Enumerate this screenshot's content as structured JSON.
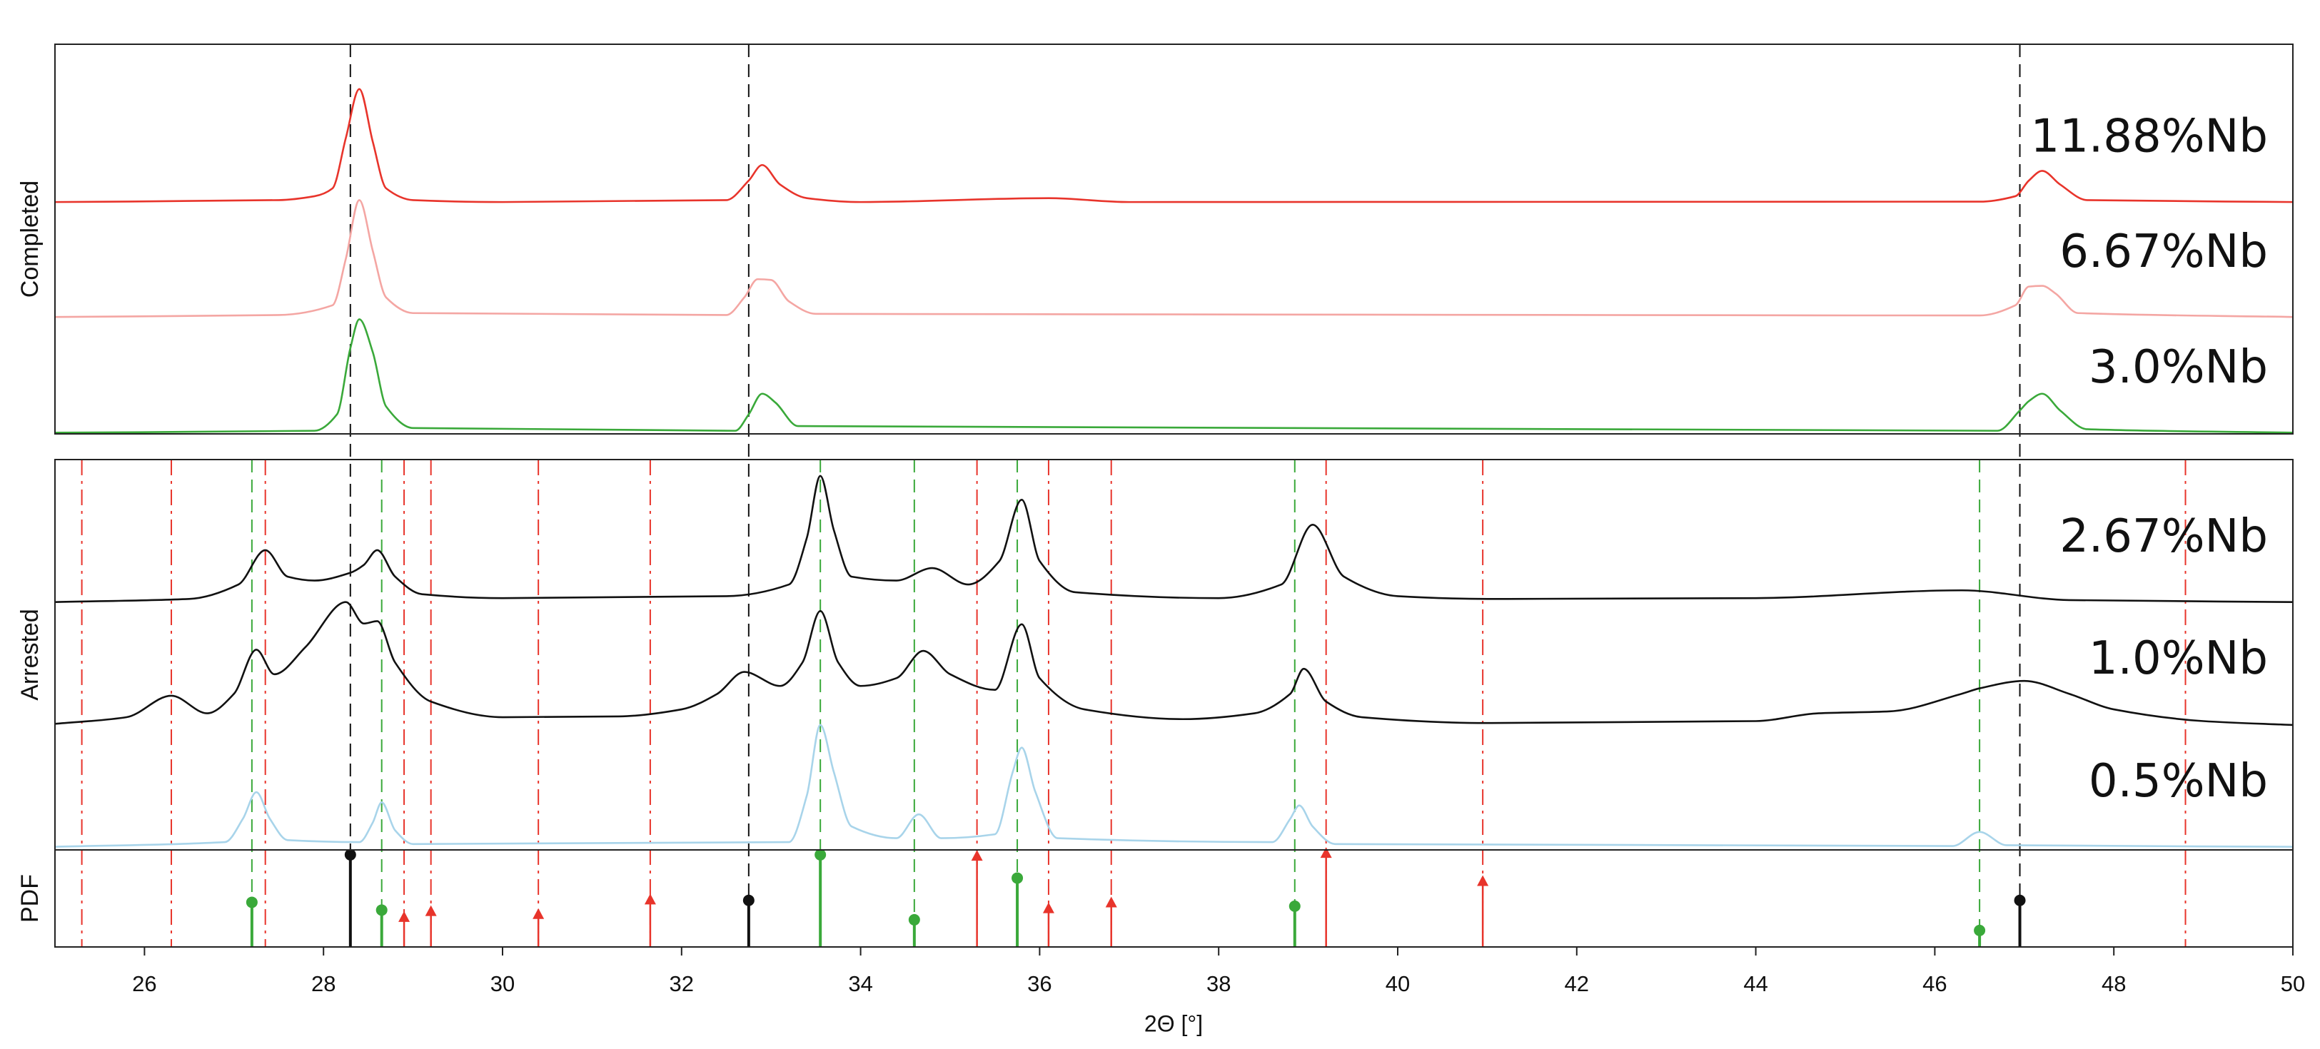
{
  "chart_data": {
    "type": "line",
    "xlabel": "2Θ [°]",
    "xlim": [
      25,
      50
    ],
    "xticks": [
      26,
      28,
      30,
      32,
      34,
      36,
      38,
      40,
      42,
      44,
      46,
      48,
      50
    ],
    "panels": [
      {
        "type": "line",
        "ylabel": "Completed",
        "ylim": [
          0,
          100
        ],
        "series": [
          {
            "name": "11.88%Nb",
            "color": "#e8342b",
            "x": [
              25,
              27.5,
              27.9,
              28.1,
              28.25,
              28.4,
              28.55,
              28.7,
              29,
              30,
              32.5,
              32.75,
              32.9,
              33.1,
              33.4,
              34,
              36.1,
              37,
              46.5,
              46.9,
              47.05,
              47.2,
              47.4,
              47.7,
              50
            ],
            "values": [
              59.5,
              60,
              61,
              63,
              76,
              88.5,
              75,
              63,
              60,
              59.5,
              60,
              65,
              69,
              64,
              60.5,
              59.5,
              60.5,
              59.5,
              59.6,
              61,
              65,
              67.5,
              64,
              60,
              59.5
            ]
          },
          {
            "name": "6.67%Nb",
            "color": "#f4a6a3",
            "x": [
              25,
              27.5,
              28.1,
              28.25,
              28.4,
              28.55,
              28.7,
              29,
              32.5,
              32.7,
              32.85,
              33.0,
              33.2,
              33.5,
              46.5,
              46.9,
              47.05,
              47.2,
              47.35,
              47.6,
              50
            ],
            "values": [
              30,
              30.5,
              33,
              45,
              60,
              47,
              35,
              31,
              30.5,
              35,
              39.7,
              39.5,
              34,
              30.8,
              30.4,
              33,
              37.8,
              38,
              36,
              31,
              30
            ]
          },
          {
            "name": "3.0%Nb",
            "color": "#3aa93a",
            "x": [
              25,
              27.9,
              28.15,
              28.3,
              28.4,
              28.55,
              28.7,
              29,
              32.6,
              32.75,
              32.9,
              33.05,
              33.3,
              46.7,
              46.95,
              47.05,
              47.2,
              47.4,
              47.7,
              50
            ],
            "values": [
              0.3,
              0.8,
              5,
              22,
              29.4,
              21,
              7,
              1.5,
              0.8,
              5,
              10.3,
              8,
              2,
              0.8,
              6,
              8.4,
              10.3,
              6,
              1.2,
              0.3
            ]
          }
        ]
      },
      {
        "type": "line",
        "ylabel": "Arrested",
        "ylim": [
          0,
          100
        ],
        "series": [
          {
            "name": "2.67%Nb",
            "color": "#111111",
            "x": [
              25,
              26.5,
              27.05,
              27.35,
              27.6,
              27.9,
              28.3,
              28.45,
              28.6,
              28.8,
              29.1,
              30,
              32.5,
              33.2,
              33.4,
              33.55,
              33.7,
              33.9,
              34.4,
              34.8,
              35.2,
              35.55,
              35.8,
              36.0,
              36.4,
              38,
              38.7,
              39.05,
              39.4,
              40,
              41,
              44,
              46.3,
              47.5,
              50
            ],
            "values": [
              63.5,
              64.3,
              68,
              76.8,
              70,
              69,
              71,
              73,
              76.8,
              70,
              65.5,
              64.5,
              65,
              68,
              80,
              95.8,
              82,
              70,
              69,
              72.2,
              68,
              74,
              89.7,
              74,
              66,
              64.5,
              68,
              83.3,
              70,
              65,
              64.3,
              64.5,
              66.5,
              64,
              63.5
            ]
          },
          {
            "name": "1.0%Nb",
            "color": "#111111",
            "x": [
              25,
              25.8,
              26.3,
              26.7,
              27.0,
              27.25,
              27.45,
              27.8,
              28.25,
              28.45,
              28.6,
              28.8,
              29.2,
              30,
              31.3,
              32,
              32.4,
              32.7,
              33.1,
              33.35,
              33.55,
              33.75,
              34,
              34.4,
              34.7,
              35.0,
              35.5,
              35.8,
              36.0,
              36.5,
              37.6,
              38.4,
              38.8,
              38.95,
              39.2,
              39.6,
              41,
              44,
              44.7,
              45.5,
              46.3,
              46.5,
              47.0,
              47.5,
              48,
              49,
              50
            ],
            "values": [
              32.3,
              34,
              39.5,
              35,
              40,
              51.3,
              45,
              52,
              63.5,
              58,
              58.6,
              48,
              38,
              34,
              34.2,
              36,
              40,
              45.6,
              42,
              48,
              61.2,
              48,
              42,
              44,
              51,
              45,
              41,
              57.8,
              44,
              36,
              33.5,
              35,
              40,
              46.4,
              38,
              34,
              32.5,
              33,
              35,
              35.5,
              40,
              41.4,
              43.3,
              40,
              36,
              33,
              32
            ]
          },
          {
            "name": "0.5%Nb",
            "color": "#a8d4ea",
            "x": [
              25,
              26.9,
              27.1,
              27.25,
              27.4,
              27.6,
              28.4,
              28.55,
              28.65,
              28.8,
              29,
              33.2,
              33.4,
              33.55,
              33.7,
              33.9,
              34.4,
              34.65,
              34.9,
              35.5,
              35.7,
              35.8,
              35.95,
              36.2,
              38.6,
              38.8,
              38.9,
              39.05,
              39.3,
              46.2,
              46.5,
              46.8,
              50
            ],
            "values": [
              0.8,
              2,
              8,
              14.8,
              8,
              2.5,
              2,
              7,
              12.2,
              5,
              1.5,
              2,
              14,
              32,
              20,
              6,
              3,
              9.1,
              3,
              4,
              20,
              26.2,
              15,
              3,
              2,
              8,
              11.4,
              6,
              1.5,
              1,
              4.6,
              1.2,
              0.8
            ]
          }
        ]
      },
      {
        "type": "stem",
        "ylabel": "PDF",
        "ylim": [
          0,
          100
        ],
        "series": [
          {
            "color": "#111111",
            "marker": "circle",
            "guide": "dashed",
            "guide_span": "all",
            "x": [
              28.3,
              32.75,
              46.95
            ],
            "values": [
              95,
              48,
              48
            ]
          },
          {
            "color": "#3aa93a",
            "marker": "circle",
            "guide": "dashed",
            "guide_span": "lower",
            "x": [
              27.2,
              28.65,
              33.55,
              34.6,
              35.75,
              38.85,
              46.5
            ],
            "values": [
              46,
              38,
              95,
              28,
              71,
              42,
              17
            ]
          },
          {
            "color": "#e8342b",
            "marker": "triangle",
            "guide": "dashdot",
            "guide_span": "lower",
            "x": [
              28.9,
              29.2,
              30.4,
              31.65,
              35.3,
              36.1,
              36.8,
              39.2,
              40.95
            ],
            "values": [
              31,
              37,
              34,
              49,
              94,
              40,
              46,
              97,
              68
            ]
          }
        ],
        "reference_lines": {
          "color": "#e8342b",
          "style": "dashdot",
          "span": "lower",
          "x": [
            25.3,
            26.3,
            27.35,
            48.8
          ]
        }
      }
    ]
  }
}
